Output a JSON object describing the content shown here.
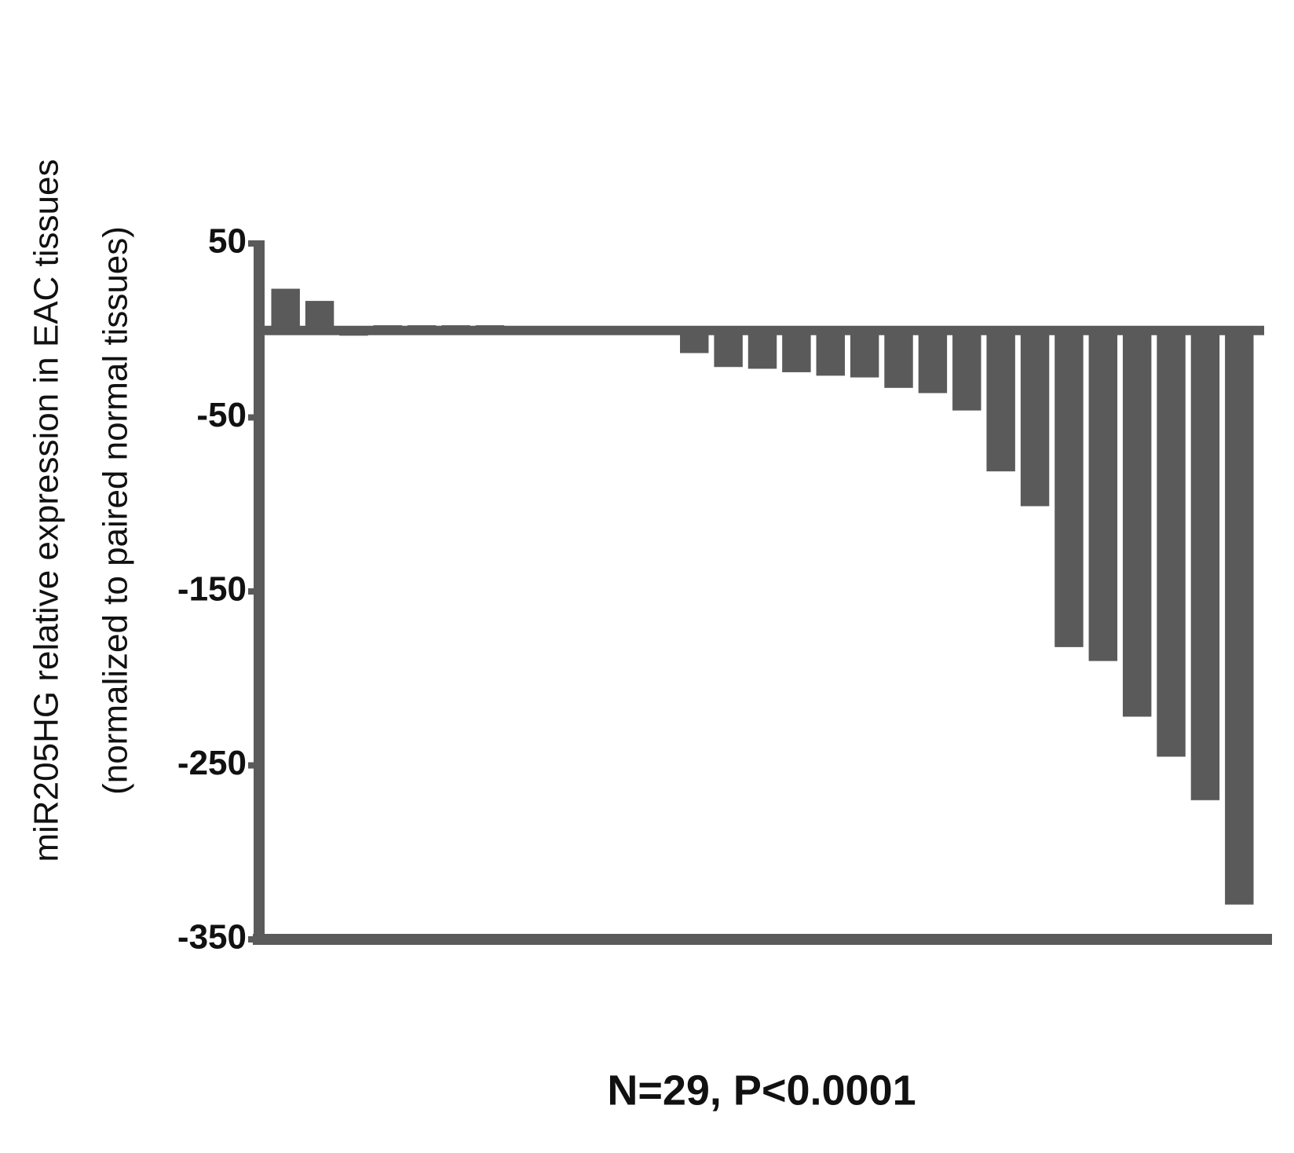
{
  "chart_data": {
    "type": "bar",
    "ylabel": [
      "miR205HG relative expression in EAC tissues",
      "(normalized to paired normal tissues)"
    ],
    "xlabel": "N=29, P<0.0001",
    "values": [
      24,
      17,
      -3,
      3,
      3,
      3,
      3,
      2,
      2,
      1,
      1,
      -2,
      -13,
      -21,
      -22,
      -24,
      -26,
      -27,
      -33,
      -36,
      -46,
      -81,
      -101,
      -182,
      -190,
      -222,
      -245,
      -270,
      -330
    ],
    "color": "#5a5a5a",
    "ylim": [
      -350,
      50
    ],
    "yticks": [
      50,
      -50,
      -150,
      -250,
      -350
    ],
    "grid": false
  }
}
